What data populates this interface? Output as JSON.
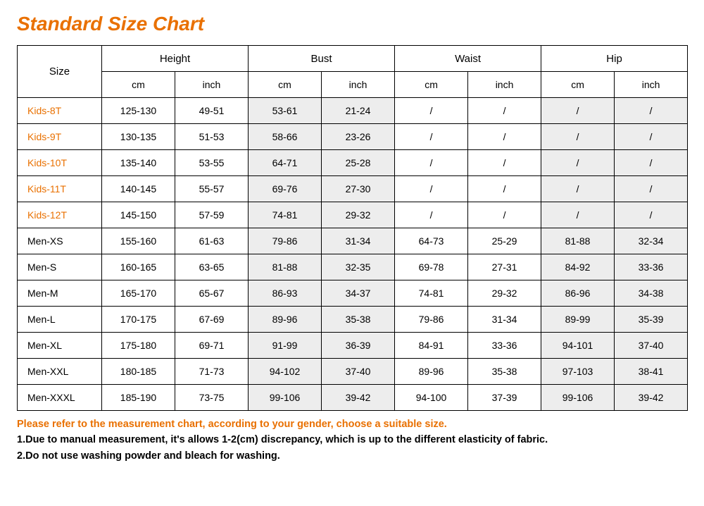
{
  "title": "Standard Size Chart",
  "table": {
    "size_header": "Size",
    "groups": [
      "Height",
      "Bust",
      "Waist",
      "Hip"
    ],
    "units": [
      "cm",
      "inch"
    ],
    "alt_group_indices": [
      1,
      3
    ],
    "rows": [
      {
        "label": "Kids-8T",
        "kid": true,
        "cells": [
          "125-130",
          "49-51",
          "53-61",
          "21-24",
          "/",
          "/",
          "/",
          "/"
        ]
      },
      {
        "label": "Kids-9T",
        "kid": true,
        "cells": [
          "130-135",
          "51-53",
          "58-66",
          "23-26",
          "/",
          "/",
          "/",
          "/"
        ]
      },
      {
        "label": "Kids-10T",
        "kid": true,
        "cells": [
          "135-140",
          "53-55",
          "64-71",
          "25-28",
          "/",
          "/",
          "/",
          "/"
        ]
      },
      {
        "label": "Kids-11T",
        "kid": true,
        "cells": [
          "140-145",
          "55-57",
          "69-76",
          "27-30",
          "/",
          "/",
          "/",
          "/"
        ]
      },
      {
        "label": "Kids-12T",
        "kid": true,
        "cells": [
          "145-150",
          "57-59",
          "74-81",
          "29-32",
          "/",
          "/",
          "/",
          "/"
        ]
      },
      {
        "label": "Men-XS",
        "kid": false,
        "cells": [
          "155-160",
          "61-63",
          "79-86",
          "31-34",
          "64-73",
          "25-29",
          "81-88",
          "32-34"
        ]
      },
      {
        "label": "Men-S",
        "kid": false,
        "cells": [
          "160-165",
          "63-65",
          "81-88",
          "32-35",
          "69-78",
          "27-31",
          "84-92",
          "33-36"
        ]
      },
      {
        "label": "Men-M",
        "kid": false,
        "cells": [
          "165-170",
          "65-67",
          "86-93",
          "34-37",
          "74-81",
          "29-32",
          "86-96",
          "34-38"
        ]
      },
      {
        "label": "Men-L",
        "kid": false,
        "cells": [
          "170-175",
          "67-69",
          "89-96",
          "35-38",
          "79-86",
          "31-34",
          "89-99",
          "35-39"
        ]
      },
      {
        "label": "Men-XL",
        "kid": false,
        "cells": [
          "175-180",
          "69-71",
          "91-99",
          "36-39",
          "84-91",
          "33-36",
          "94-101",
          "37-40"
        ]
      },
      {
        "label": "Men-XXL",
        "kid": false,
        "cells": [
          "180-185",
          "71-73",
          "94-102",
          "37-40",
          "89-96",
          "35-38",
          "97-103",
          "38-41"
        ]
      },
      {
        "label": "Men-XXXL",
        "kid": false,
        "cells": [
          "185-190",
          "73-75",
          "99-106",
          "39-42",
          "94-100",
          "37-39",
          "99-106",
          "39-42"
        ]
      }
    ]
  },
  "notes": [
    {
      "text": "Please refer to the measurement chart, according to your gender, choose a suitable size.",
      "style": "orange"
    },
    {
      "text": "1.Due to manual measurement, it's allows 1-2(cm) discrepancy, which is up to the different elasticity of fabric.",
      "style": "black"
    },
    {
      "text": "2.Do not use washing powder and bleach for washing.",
      "style": "black"
    }
  ],
  "colors": {
    "accent": "#e97000",
    "alt_bg": "#ededed",
    "border": "#000000",
    "text": "#000000",
    "background": "#ffffff"
  }
}
